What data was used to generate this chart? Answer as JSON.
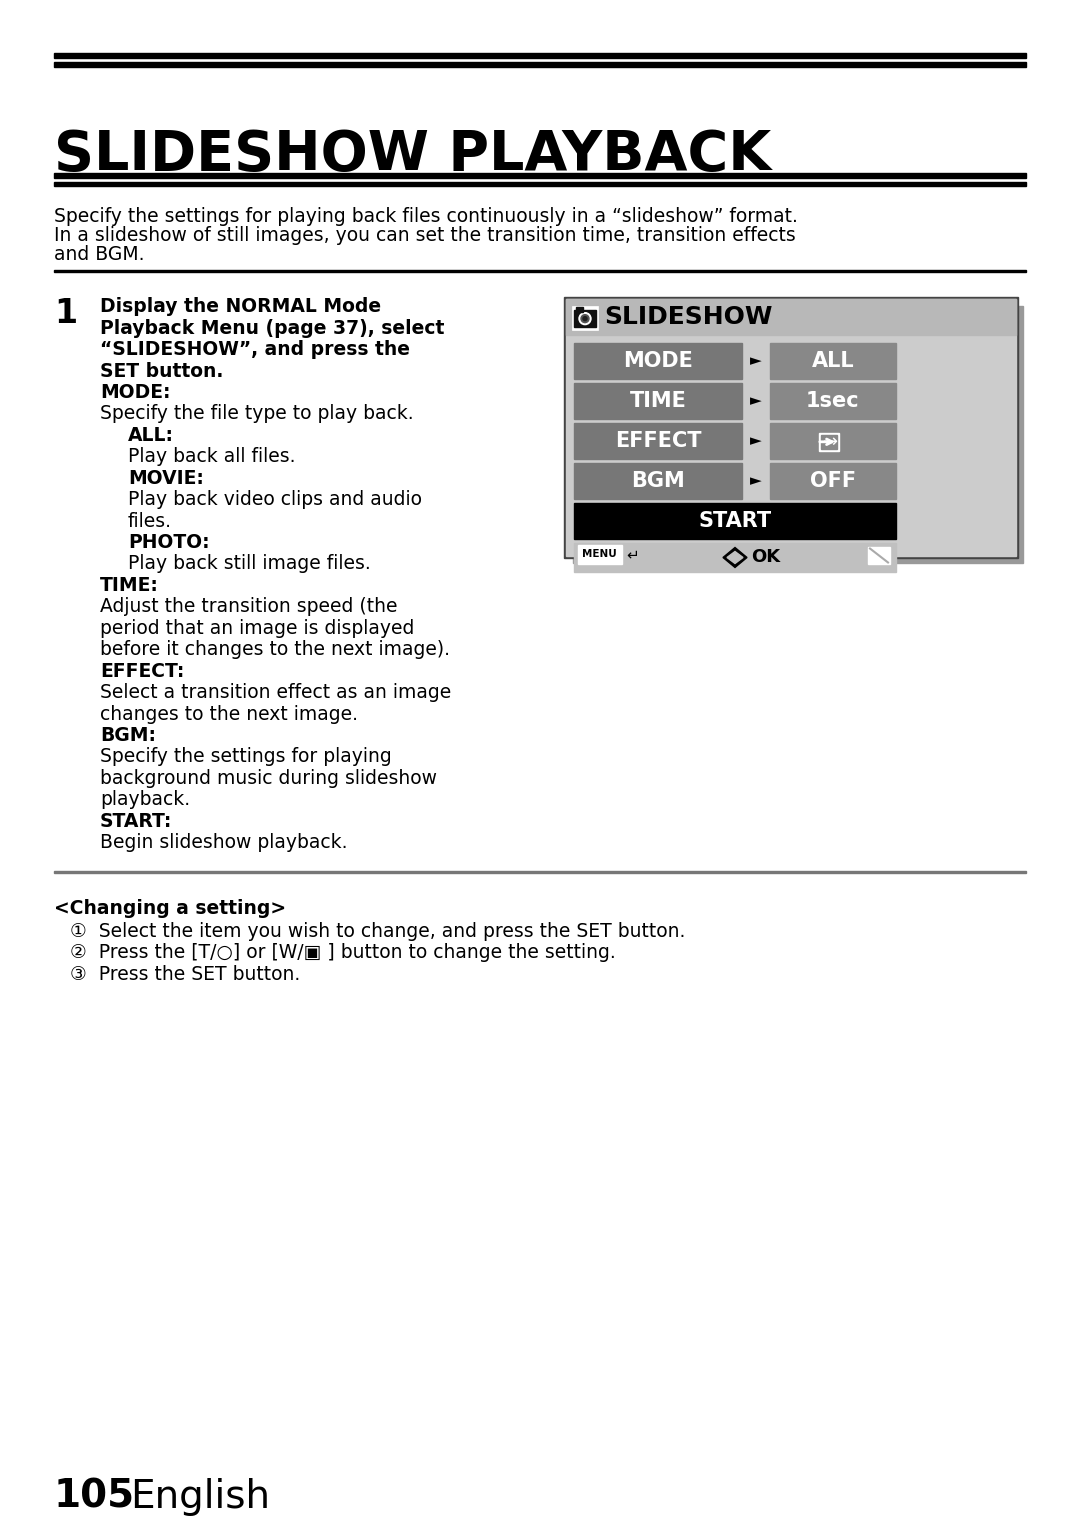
{
  "title": "SLIDESHOW PLAYBACK",
  "subtitle_line1": "Specify the settings for playing back files continuously in a “slideshow” format.",
  "subtitle_line2": "In a slideshow of still images, you can set the transition time, transition effects",
  "subtitle_line3": "and BGM.",
  "step_number": "1",
  "body_lines": [
    {
      "text": "Display the NORMAL Mode",
      "bold": true,
      "indent": 0
    },
    {
      "text": "Playback Menu (page 37), select",
      "bold": true,
      "indent": 0
    },
    {
      "“SLIDESHOW”, and press the": "“SLIDESHOW”, and press the",
      "text": "“SLIDESHOW”, and press the",
      "bold": true,
      "indent": 0
    },
    {
      "text": "SET button.",
      "bold": true,
      "indent": 0
    },
    {
      "text": "MODE:",
      "bold": true,
      "indent": 0
    },
    {
      "text": "Specify the file type to play back.",
      "bold": false,
      "indent": 0
    },
    {
      "text": "ALL:",
      "bold": true,
      "indent": 1
    },
    {
      "text": "Play back all files.",
      "bold": false,
      "indent": 1
    },
    {
      "text": "MOVIE:",
      "bold": true,
      "indent": 1
    },
    {
      "text": "Play back video clips and audio",
      "bold": false,
      "indent": 1
    },
    {
      "text": "files.",
      "bold": false,
      "indent": 1
    },
    {
      "text": "PHOTO:",
      "bold": true,
      "indent": 1
    },
    {
      "text": "Play back still image files.",
      "bold": false,
      "indent": 1
    },
    {
      "text": "TIME:",
      "bold": true,
      "indent": 0
    },
    {
      "text": "Adjust the transition speed (the",
      "bold": false,
      "indent": 0
    },
    {
      "text": "period that an image is displayed",
      "bold": false,
      "indent": 0
    },
    {
      "text": "before it changes to the next image).",
      "bold": false,
      "indent": 0
    },
    {
      "text": "EFFECT:",
      "bold": true,
      "indent": 0
    },
    {
      "text": "Select a transition effect as an image",
      "bold": false,
      "indent": 0
    },
    {
      "text": "changes to the next image.",
      "bold": false,
      "indent": 0
    },
    {
      "text": "BGM:",
      "bold": true,
      "indent": 0
    },
    {
      "text": "Specify the settings for playing",
      "bold": false,
      "indent": 0
    },
    {
      "text": "background music during slideshow",
      "bold": false,
      "indent": 0
    },
    {
      "text": "playback.",
      "bold": false,
      "indent": 0
    },
    {
      "text": "START:",
      "bold": true,
      "indent": 0
    },
    {
      "text": "Begin slideshow playback.",
      "bold": false,
      "indent": 0
    }
  ],
  "changing_title": "<Changing a setting>",
  "changing_items": [
    "①  Select the item you wish to change, and press the SET button.",
    "②  Press the [T/○] or [W/▣ ] button to change the setting.",
    "③  Press the SET button."
  ],
  "bg_color": "#ffffff",
  "text_color": "#000000",
  "menu_bg": "#cccccc",
  "menu_header_bg": "#b8b8b8",
  "menu_row_bg": "#777777",
  "menu_start_bg": "#000000",
  "menu_value_bg": "#888888",
  "line_color": "#000000"
}
